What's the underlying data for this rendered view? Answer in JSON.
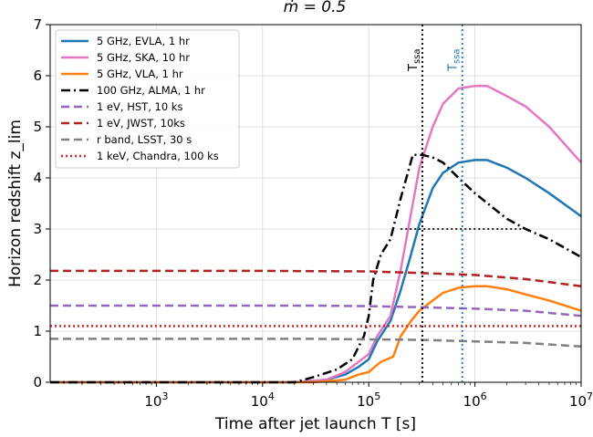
{
  "chart_data": {
    "type": "line",
    "title": "ṁ = 0.5",
    "xlabel": "Time after jet launch T [s]",
    "ylabel": "Horizon redshift z_lim",
    "xscale": "log",
    "xlim": [
      100,
      10000000
    ],
    "ylim": [
      0,
      7
    ],
    "yticks": [
      "0",
      "1",
      "2",
      "3",
      "4",
      "5",
      "6",
      "7"
    ],
    "xticks": [
      {
        "value": 1000,
        "base": "10",
        "exp": "3"
      },
      {
        "value": 10000,
        "base": "10",
        "exp": "4"
      },
      {
        "value": 100000,
        "base": "10",
        "exp": "5"
      },
      {
        "value": 1000000,
        "base": "10",
        "exp": "6"
      },
      {
        "value": 10000000,
        "base": "10",
        "exp": "7"
      }
    ],
    "grid": true,
    "legend_position": "upper-left",
    "series": [
      {
        "name": "5 GHz, EVLA, 1 hr",
        "color": "#1f77b4",
        "dash": "solid",
        "points": [
          [
            100,
            0
          ],
          [
            20000,
            0
          ],
          [
            40000,
            0.05
          ],
          [
            60000,
            0.15
          ],
          [
            80000,
            0.3
          ],
          [
            100000,
            0.45
          ],
          [
            120000,
            0.8
          ],
          [
            160000,
            1.2
          ],
          [
            200000,
            1.8
          ],
          [
            250000,
            2.5
          ],
          [
            300000,
            3.1
          ],
          [
            400000,
            3.8
          ],
          [
            500000,
            4.1
          ],
          [
            700000,
            4.3
          ],
          [
            1000000,
            4.35
          ],
          [
            1300000,
            4.35
          ],
          [
            2000000,
            4.2
          ],
          [
            3000000,
            4.0
          ],
          [
            5000000,
            3.7
          ],
          [
            10000000,
            3.25
          ]
        ]
      },
      {
        "name": "5 GHz, SKA, 10 hr",
        "color": "#e377c2",
        "dash": "solid",
        "points": [
          [
            100,
            0
          ],
          [
            20000,
            0
          ],
          [
            40000,
            0.05
          ],
          [
            60000,
            0.2
          ],
          [
            80000,
            0.4
          ],
          [
            100000,
            0.55
          ],
          [
            120000,
            0.9
          ],
          [
            160000,
            1.3
          ],
          [
            200000,
            2.2
          ],
          [
            250000,
            3.3
          ],
          [
            300000,
            4.2
          ],
          [
            400000,
            5.0
          ],
          [
            500000,
            5.45
          ],
          [
            700000,
            5.75
          ],
          [
            1000000,
            5.8
          ],
          [
            1300000,
            5.8
          ],
          [
            2000000,
            5.6
          ],
          [
            3000000,
            5.4
          ],
          [
            5000000,
            5.0
          ],
          [
            10000000,
            4.3
          ]
        ]
      },
      {
        "name": "5 GHz, VLA, 1 hr",
        "color": "#ff7f0e",
        "dash": "solid",
        "points": [
          [
            100,
            0
          ],
          [
            30000,
            0
          ],
          [
            60000,
            0.05
          ],
          [
            80000,
            0.15
          ],
          [
            100000,
            0.2
          ],
          [
            130000,
            0.4
          ],
          [
            170000,
            0.5
          ],
          [
            200000,
            0.9
          ],
          [
            250000,
            1.2
          ],
          [
            300000,
            1.4
          ],
          [
            400000,
            1.6
          ],
          [
            500000,
            1.75
          ],
          [
            700000,
            1.85
          ],
          [
            1000000,
            1.88
          ],
          [
            1300000,
            1.88
          ],
          [
            2000000,
            1.82
          ],
          [
            3000000,
            1.72
          ],
          [
            5000000,
            1.6
          ],
          [
            10000000,
            1.4
          ]
        ]
      },
      {
        "name": "100 GHz, ALMA, 1 hr",
        "color": "#000000",
        "dash": "dashdot",
        "points": [
          [
            100,
            0
          ],
          [
            20000,
            0
          ],
          [
            30000,
            0.1
          ],
          [
            50000,
            0.25
          ],
          [
            70000,
            0.45
          ],
          [
            90000,
            0.9
          ],
          [
            100000,
            1.3
          ],
          [
            110000,
            2.0
          ],
          [
            130000,
            2.5
          ],
          [
            160000,
            2.8
          ],
          [
            200000,
            3.6
          ],
          [
            260000,
            4.45
          ],
          [
            320000,
            4.45
          ],
          [
            400000,
            4.4
          ],
          [
            500000,
            4.3
          ],
          [
            700000,
            4.0
          ],
          [
            1000000,
            3.7
          ],
          [
            2000000,
            3.2
          ],
          [
            3000000,
            3.0
          ],
          [
            5000000,
            2.8
          ],
          [
            10000000,
            2.45
          ]
        ]
      },
      {
        "name": "1 eV, HST, 10 ks",
        "color": "#9467bd",
        "dash": "dashed",
        "points": [
          [
            100,
            1.5
          ],
          [
            30000,
            1.5
          ],
          [
            100000,
            1.49
          ],
          [
            300000,
            1.47
          ],
          [
            1000000,
            1.44
          ],
          [
            3000000,
            1.4
          ],
          [
            10000000,
            1.3
          ]
        ]
      },
      {
        "name": "1 eV, JWST, 10ks",
        "color": "#b22222",
        "dash": "dashed",
        "points": [
          [
            100,
            2.18
          ],
          [
            10000,
            2.18
          ],
          [
            100000,
            2.17
          ],
          [
            300000,
            2.14
          ],
          [
            1000000,
            2.1
          ],
          [
            3000000,
            2.02
          ],
          [
            10000000,
            1.88
          ]
        ]
      },
      {
        "name": "r band, LSST, 30 s",
        "color": "#808080",
        "dash": "dashed",
        "points": [
          [
            100,
            0.85
          ],
          [
            30000,
            0.85
          ],
          [
            100000,
            0.84
          ],
          [
            300000,
            0.83
          ],
          [
            1000000,
            0.8
          ],
          [
            3000000,
            0.77
          ],
          [
            10000000,
            0.7
          ]
        ]
      },
      {
        "name": "1 keV, Chandra, 100 ks",
        "color": "#d62728",
        "dash": "dotted",
        "points": [
          [
            100,
            1.1
          ],
          [
            10000000,
            1.1
          ]
        ]
      }
    ],
    "vlines": [
      {
        "label": "T",
        "sub": "ssa",
        "x": 320000,
        "color": "#000000"
      },
      {
        "label": "T",
        "sub": "ssa",
        "x": 760000,
        "color": "#1f77b4"
      }
    ],
    "hline": {
      "y": 3.0,
      "x_range": [
        200000,
        3000000
      ],
      "color": "#000000"
    }
  }
}
